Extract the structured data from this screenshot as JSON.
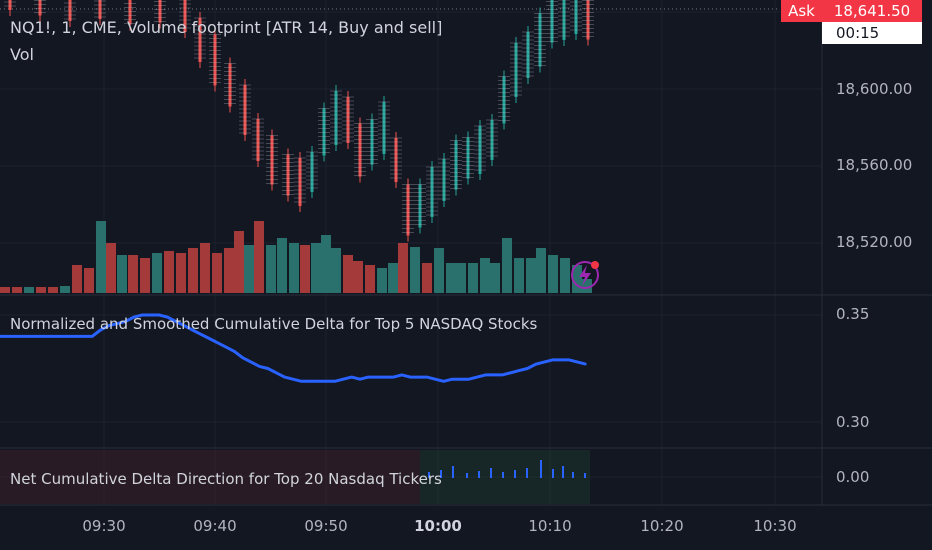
{
  "header": {
    "symbol_title": "NQ1!, 1, CME, Volume footprint [ATR 14, Buy and sell]",
    "volume_label": "Vol"
  },
  "price_axis": {
    "labels": [
      "18,600.00",
      "18,560.00",
      "18,520.00"
    ]
  },
  "ask_marker": {
    "tag": "Ask",
    "price": "18,641.50",
    "countdown": "00:15"
  },
  "indicators": {
    "cumulative_delta": {
      "title": "Normalized and Smoothed Cumulative Delta for Top 5 NASDAQ Stocks",
      "axis_labels": [
        "0.35",
        "0.30"
      ]
    },
    "net_direction": {
      "title": "Net Cumulative Delta Direction for Top 20 Nasdaq Tickers",
      "axis_label": "0.00"
    }
  },
  "time_axis": {
    "labels": [
      "09:30",
      "09:40",
      "09:50",
      "10:00",
      "10:10",
      "10:20",
      "10:30"
    ],
    "bold_label": "10:00"
  },
  "colors": {
    "background": "#131722",
    "up": "#26a69a",
    "down": "#ef5350",
    "volume_up": "#2a706c",
    "volume_down": "#a53a3a",
    "delta_line": "#2962ff",
    "ask": "#f23645",
    "alert_icon": "#9c27b0"
  },
  "chart_data": {
    "type": "line",
    "series": [
      {
        "values": [
          0.34,
          0.34,
          0.34,
          0.34,
          0.34,
          0.34,
          0.34,
          0.34,
          0.34,
          0.34,
          0.34,
          0.34,
          0.343,
          0.345,
          0.346,
          0.347,
          0.349,
          0.35,
          0.35,
          0.35,
          0.349,
          0.347,
          0.345,
          0.343,
          0.341,
          0.339,
          0.337,
          0.335,
          0.333,
          0.33,
          0.328,
          0.326,
          0.325,
          0.323,
          0.321,
          0.32,
          0.319,
          0.319,
          0.319,
          0.319,
          0.319,
          0.32,
          0.321,
          0.32,
          0.321,
          0.321,
          0.321,
          0.321,
          0.322,
          0.321,
          0.321,
          0.321,
          0.32,
          0.319,
          0.32,
          0.32,
          0.32,
          0.321,
          0.322,
          0.322,
          0.322,
          0.323,
          0.324,
          0.325,
          0.327,
          0.328,
          0.329,
          0.329,
          0.329,
          0.328,
          0.327
        ]
      }
    ],
    "ylim": [
      0.3,
      0.35
    ]
  }
}
